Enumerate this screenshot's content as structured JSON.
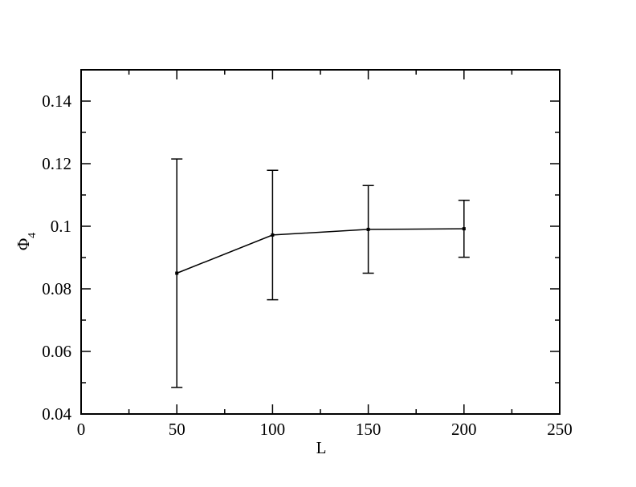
{
  "chart_data": {
    "type": "line",
    "xlabel": "L",
    "ylabel": "Φ",
    "ylabel_subscript": "4",
    "series": [
      {
        "color": "#000000",
        "x": [
          50,
          100,
          150,
          200
        ],
        "values": [
          0.085,
          0.0972,
          0.099,
          0.0992
        ],
        "errors": [
          0.0365,
          0.0207,
          0.014,
          0.0091
        ]
      }
    ],
    "xlim": [
      0,
      250
    ],
    "xticks": [
      0,
      50,
      100,
      150,
      200,
      250
    ],
    "xminorticks": [
      25,
      75,
      125,
      175,
      225
    ],
    "ylim": [
      0.04,
      0.15
    ],
    "yticks": [
      0.04,
      0.06,
      0.08,
      0.1,
      0.12,
      0.14
    ],
    "yminorticks": [
      0.05,
      0.07,
      0.09,
      0.11,
      0.13,
      0.15
    ]
  }
}
